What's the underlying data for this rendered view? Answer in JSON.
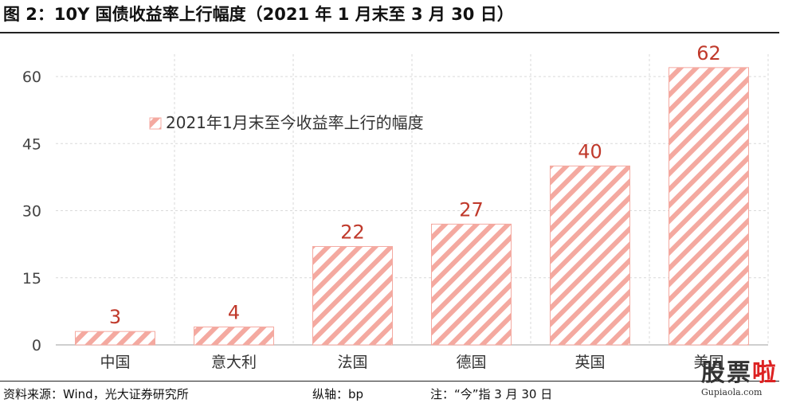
{
  "header": {
    "title": "图 2：10Y 国债收益率上行幅度（2021 年 1 月末至 3 月 30 日）"
  },
  "footer": {
    "source": "资料来源：Wind，光大证券研究所",
    "axis_note": "纵轴：bp",
    "note": "注：“今”指 3 月 30 日"
  },
  "watermark": {
    "logo_a": "股票",
    "logo_b": "啦",
    "url": "Gupiaola.com"
  },
  "colors": {
    "bar_stripe": "#f4a9a0",
    "label": "#c0392b",
    "grid": "#d9d9d9",
    "axis": "#bfbfbf"
  },
  "chart_data": {
    "type": "bar",
    "categories": [
      "中国",
      "意大利",
      "法国",
      "德国",
      "英国",
      "美国"
    ],
    "series": [
      {
        "name": "2021年1月末至今收益率上行的幅度",
        "values": [
          3,
          4,
          22,
          27,
          40,
          62
        ]
      }
    ],
    "ylim": [
      0,
      65
    ],
    "yticks": [
      0,
      15,
      30,
      45,
      60
    ],
    "data_labels": [
      "3",
      "4",
      "22",
      "27",
      "40",
      "62"
    ],
    "grid": true,
    "legend_position": "top-left"
  }
}
